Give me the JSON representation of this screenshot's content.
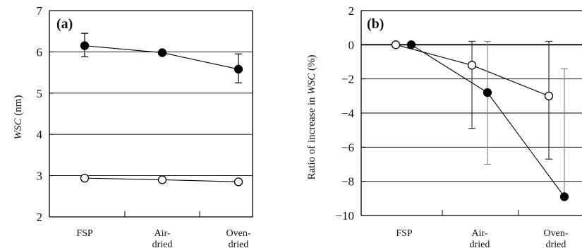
{
  "chart_data": [
    {
      "type": "line",
      "panel_label": "(a)",
      "ylabel_var": "WSC",
      "ylabel_unit": "(nm)",
      "xlabel": "",
      "categories": [
        [
          "FSP"
        ],
        [
          "Air-",
          "dried"
        ],
        [
          "Oven-",
          "dried"
        ]
      ],
      "ylim": [
        2,
        7
      ],
      "yticks": [
        2,
        3,
        4,
        5,
        6,
        7
      ],
      "grid": true,
      "legend": "none",
      "series": [
        {
          "marker": "filled-circle",
          "values": [
            6.15,
            5.98,
            5.58
          ],
          "err_low": [
            5.88,
            null,
            5.25
          ],
          "err_high": [
            6.45,
            null,
            5.95
          ]
        },
        {
          "marker": "open-circle",
          "values": [
            2.94,
            2.9,
            2.85
          ],
          "err_low": [
            null,
            null,
            null
          ],
          "err_high": [
            null,
            null,
            null
          ]
        }
      ]
    },
    {
      "type": "line",
      "panel_label": "(b)",
      "ylabel_prefix": "Ratio of increase in ",
      "ylabel_var": "WSC",
      "ylabel_unit": " (%)",
      "xlabel": "",
      "categories": [
        [
          "FSP"
        ],
        [
          "Air-",
          "dried"
        ],
        [
          "Oven-",
          "dried"
        ]
      ],
      "ylim": [
        -10,
        2
      ],
      "yticks": [
        2,
        0,
        -2,
        -4,
        -6,
        -8,
        -10
      ],
      "ytick_labels": [
        "2",
        "0",
        "−2",
        "−4",
        "−6",
        "−8",
        "−10"
      ],
      "grid": true,
      "legend": "none",
      "series": [
        {
          "marker": "open-circle",
          "values": [
            0,
            -1.2,
            -3.0
          ],
          "err_low": [
            null,
            -4.9,
            -6.7
          ],
          "err_high": [
            null,
            0.2,
            0.2
          ]
        },
        {
          "marker": "filled-circle",
          "values": [
            0,
            -2.8,
            -8.9
          ],
          "err_low": [
            null,
            -7.0,
            null
          ],
          "err_high": [
            null,
            0.2,
            -1.4
          ]
        }
      ]
    }
  ]
}
